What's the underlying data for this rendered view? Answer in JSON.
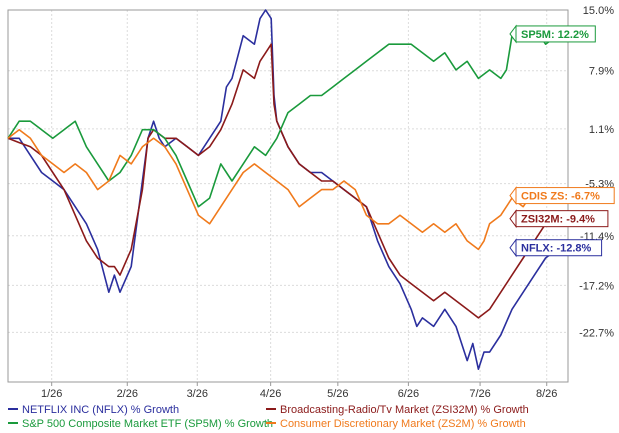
{
  "chart_data": {
    "type": "line",
    "title": "",
    "xlabel": "",
    "ylabel": "",
    "ylim": [
      -28.5,
      15.0
    ],
    "xlim": [
      0,
      100
    ],
    "x_ticks": [
      {
        "label": "1/26",
        "x": 7.8
      },
      {
        "label": "2/26",
        "x": 21.3
      },
      {
        "label": "3/26",
        "x": 33.8
      },
      {
        "label": "4/26",
        "x": 46.9
      },
      {
        "label": "5/26",
        "x": 58.9
      },
      {
        "label": "6/26",
        "x": 71.5
      },
      {
        "label": "7/26",
        "x": 84.3
      },
      {
        "label": "8/26",
        "x": 96.2
      }
    ],
    "y_ticks": [
      {
        "label": "15.0%",
        "value": 15.0
      },
      {
        "label": "7.9%",
        "value": 7.9
      },
      {
        "label": "1.1%",
        "value": 1.1
      },
      {
        "label": "-5.3%",
        "value": -5.3
      },
      {
        "label": "-11.4%",
        "value": -11.4
      },
      {
        "label": "-17.2%",
        "value": -17.2
      },
      {
        "label": "-22.7%",
        "value": -22.7
      }
    ],
    "grid": true,
    "legend_position": "bottom",
    "series": [
      {
        "name": "NETFLIX INC (NFLX) % Growth",
        "color": "#2b2f9e",
        "end_label": "NFLX: -12.8%",
        "x": [
          0,
          2,
          4,
          6,
          8,
          10,
          12,
          14,
          16,
          18,
          19,
          20,
          22,
          24,
          25,
          26,
          27,
          28,
          30,
          32,
          34,
          36,
          38,
          39,
          40,
          42,
          44,
          45,
          46,
          47,
          47.5,
          48,
          50,
          52,
          54,
          56,
          58,
          60,
          62,
          64,
          66,
          68,
          70,
          72,
          73,
          74,
          76,
          78,
          80,
          82,
          83,
          84,
          85,
          86,
          88,
          90,
          92,
          94,
          96,
          98,
          100
        ],
        "y": [
          0,
          0,
          -2,
          -4,
          -5,
          -6,
          -8,
          -10,
          -13,
          -18,
          -16,
          -18,
          -15,
          -5,
          0,
          2,
          0,
          -1,
          0,
          -1,
          -2,
          0,
          2,
          6,
          7,
          12,
          11,
          14,
          15,
          14,
          5,
          2,
          -1,
          -3,
          -4,
          -4,
          -5,
          -6,
          -7,
          -8,
          -12,
          -15,
          -17,
          -20,
          -22,
          -21,
          -22,
          -20,
          -22,
          -26,
          -24,
          -27,
          -25,
          -25,
          -23,
          -20,
          -18,
          -16,
          -14,
          -13,
          -12.8
        ]
      },
      {
        "name": "Broadcasting-Radio/Tv Market (ZSI32M) % Growth",
        "color": "#8b1a1a",
        "end_label": "ZSI32M: -9.4%",
        "x": [
          0,
          2,
          4,
          6,
          8,
          10,
          12,
          14,
          16,
          18,
          19,
          20,
          22,
          24,
          25,
          26,
          28,
          30,
          32,
          34,
          36,
          38,
          40,
          42,
          44,
          45,
          46,
          47,
          47.5,
          48,
          50,
          52,
          54,
          56,
          58,
          60,
          62,
          64,
          66,
          68,
          70,
          72,
          74,
          76,
          78,
          80,
          82,
          84,
          86,
          88,
          90,
          92,
          94,
          96,
          98,
          100
        ],
        "y": [
          0,
          -0.5,
          -1,
          -2,
          -4,
          -6,
          -9,
          -12,
          -14,
          -15,
          -15,
          -16,
          -13,
          -6,
          0,
          1,
          0,
          0,
          -1,
          -2,
          -1,
          1,
          4,
          8,
          7,
          9,
          10,
          11,
          4,
          2,
          -1,
          -3,
          -4,
          -5,
          -5,
          -6,
          -7,
          -8,
          -11,
          -14,
          -16,
          -17,
          -18,
          -19,
          -18,
          -19,
          -20,
          -21,
          -20,
          -18,
          -16,
          -14,
          -12,
          -10,
          -9.5,
          -9.4
        ]
      },
      {
        "name": "S&P 500 Composite Market ETF (SP5M) % Growth",
        "color": "#1a9a3c",
        "end_label": "SP5M: 12.2%",
        "x": [
          0,
          2,
          4,
          6,
          8,
          10,
          12,
          14,
          16,
          18,
          20,
          22,
          24,
          26,
          28,
          30,
          32,
          34,
          36,
          38,
          40,
          42,
          44,
          46,
          48,
          50,
          52,
          54,
          56,
          58,
          60,
          62,
          64,
          66,
          68,
          70,
          72,
          74,
          76,
          78,
          80,
          82,
          84,
          86,
          88,
          89,
          90,
          92,
          94,
          96,
          98,
          100
        ],
        "y": [
          0,
          2,
          2,
          1,
          0,
          1,
          2,
          -1,
          -3,
          -5,
          -4,
          -2,
          1,
          1,
          0,
          -2,
          -5,
          -8,
          -7,
          -3,
          -5,
          -3,
          -1,
          -2,
          0,
          3,
          4,
          5,
          5,
          6,
          7,
          8,
          9,
          10,
          11,
          11,
          11,
          10,
          9,
          10,
          8,
          9,
          7,
          8,
          7,
          8,
          12,
          12,
          13,
          11,
          12,
          12.2
        ]
      },
      {
        "name": "Consumer Discretionary Market (ZS2M) % Growth",
        "color": "#f07a1c",
        "end_label": "CDIS ZS: -6.7%",
        "x": [
          0,
          2,
          4,
          6,
          8,
          10,
          12,
          14,
          16,
          18,
          20,
          22,
          24,
          26,
          28,
          30,
          32,
          34,
          36,
          38,
          40,
          42,
          44,
          46,
          48,
          50,
          52,
          54,
          56,
          58,
          60,
          62,
          64,
          66,
          68,
          70,
          72,
          74,
          76,
          78,
          80,
          82,
          84,
          85,
          86,
          88,
          90,
          92,
          94,
          96,
          98,
          100
        ],
        "y": [
          0,
          1,
          0,
          -2,
          -3,
          -4,
          -3,
          -4,
          -6,
          -5,
          -2,
          -3,
          -1,
          0,
          -1,
          -3,
          -6,
          -9,
          -10,
          -8,
          -6,
          -4,
          -3,
          -4,
          -5,
          -6,
          -8,
          -7,
          -6,
          -6,
          -5,
          -6,
          -9,
          -10,
          -10,
          -9,
          -10,
          -11,
          -10,
          -11,
          -10,
          -12,
          -13,
          -12,
          -10,
          -9,
          -7,
          -8,
          -6,
          -7,
          -6,
          -6.7
        ]
      }
    ]
  }
}
